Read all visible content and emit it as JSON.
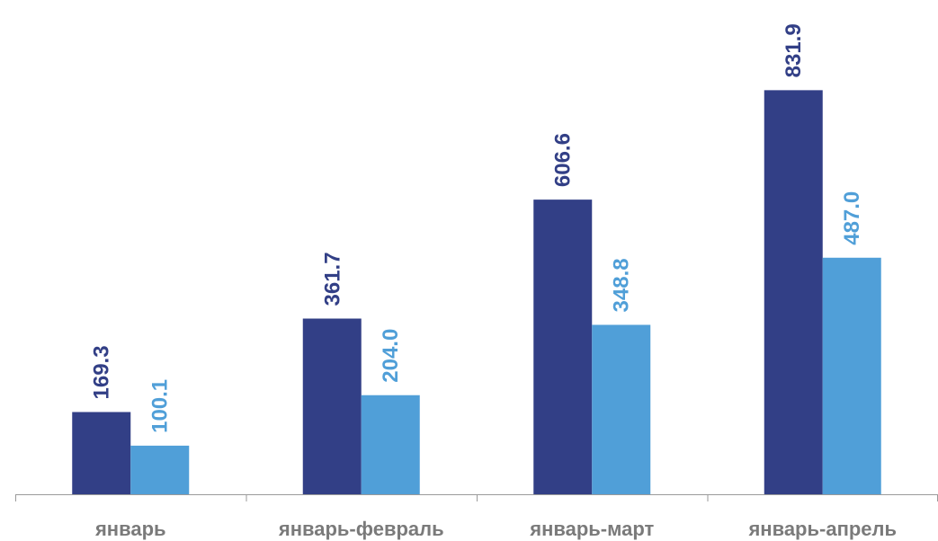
{
  "chart_data": {
    "type": "bar",
    "categories": [
      "январь",
      "январь-февраль",
      "январь-март",
      "январь-апрель"
    ],
    "series": [
      {
        "values": [
          169.3,
          361.7,
          606.6,
          831.9
        ],
        "labels": [
          "169.3",
          "361.7",
          "606.6",
          "831.9"
        ],
        "color": "#323f86"
      },
      {
        "values": [
          100.1,
          204.0,
          348.8,
          487.0
        ],
        "labels": [
          "100.1",
          "204.0",
          "348.8",
          "487.0"
        ],
        "color": "#509fd8"
      }
    ],
    "ylim": [
      0,
      1000
    ],
    "grid": false,
    "legend": "none",
    "colors": {
      "axis": "#9a9a9a",
      "category_label": "#7a7a7a"
    }
  }
}
